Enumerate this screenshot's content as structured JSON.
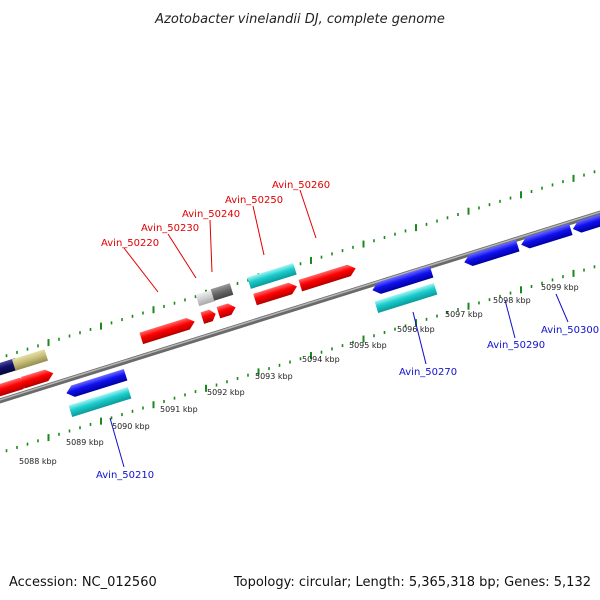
{
  "title": "Azotobacter vinelandii DJ, complete genome",
  "footer": {
    "accession": "Accession: NC_012560",
    "summary": "Topology: circular; Length: 5,365,318 bp; Genes: 5,132"
  },
  "colors": {
    "forward_label": "#e00000",
    "reverse_label": "#1010d0",
    "tick": "#1a8a1a",
    "backbone": "#888888"
  },
  "tick_labels": [
    "5088 kbp",
    "5089 kbp",
    "5090 kbp",
    "5091 kbp",
    "5092 kbp",
    "5093 kbp",
    "5094 kbp",
    "5095 kbp",
    "5096 kbp",
    "5097 kbp",
    "5098 kbp",
    "5099 kbp"
  ],
  "forward_labels": [
    "Avin_50220",
    "Avin_50230",
    "Avin_50240",
    "Avin_50250",
    "Avin_50260"
  ],
  "reverse_labels": [
    "Avin_50210",
    "Avin_50270",
    "Avin_50290",
    "Avin_50300"
  ]
}
